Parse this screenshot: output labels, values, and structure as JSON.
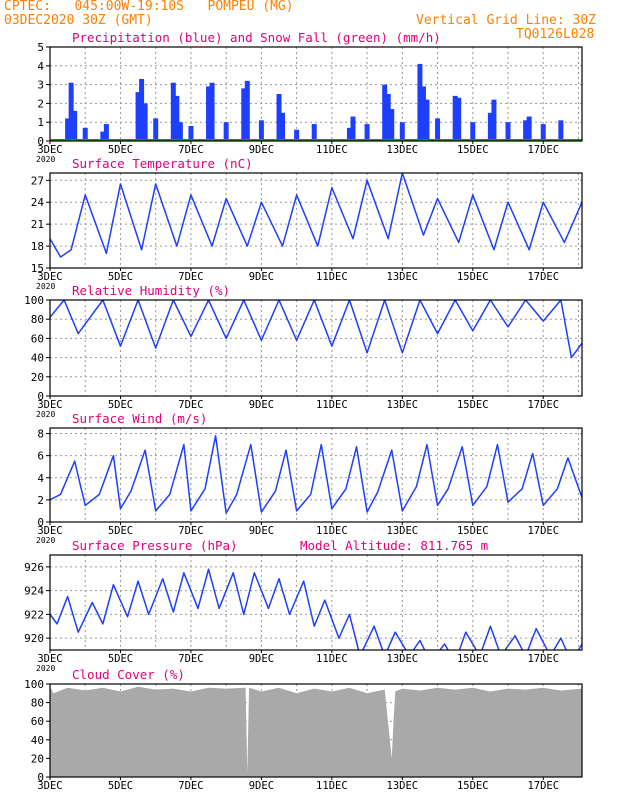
{
  "header": {
    "line1": "CPTEC:   045:00W-19:10S   POMPEU (MG)",
    "line2": "03DEC2020 30Z (GMT)",
    "grid_note": "Vertical Grid Line: 30Z",
    "code": "TQ0126L028"
  },
  "colors": {
    "header": "#ff7f00",
    "title": "#e0007a",
    "line": "#1f3fff",
    "snow": "#00a000",
    "cloud": "#a9a9a9",
    "grid": "#9a9a9a"
  },
  "x_axis": {
    "tick_labels": [
      "3DEC",
      "5DEC",
      "7DEC",
      "9DEC",
      "11DEC",
      "13DEC",
      "15DEC",
      "17DEC"
    ],
    "start_day": 3,
    "end_day": 18.1,
    "year_stub": "2020"
  },
  "chart_data": [
    {
      "type": "bar",
      "title": "Precipitation (blue) and Snow Fall (green) (mm/h)",
      "ylabel": "mm/h",
      "ylim": [
        0,
        5
      ],
      "yticks": [
        0,
        1,
        2,
        3,
        4,
        5
      ],
      "series": [
        {
          "name": "Precipitation",
          "color": "#1f3fff",
          "x": [
            3.5,
            3.6,
            3.7,
            4.0,
            4.5,
            4.6,
            5.5,
            5.6,
            5.7,
            6.0,
            6.5,
            6.6,
            6.7,
            7.0,
            7.5,
            7.6,
            8.0,
            8.5,
            8.6,
            9.0,
            9.5,
            9.6,
            10.0,
            10.5,
            11.5,
            11.6,
            12.0,
            12.5,
            12.6,
            12.7,
            13.0,
            13.5,
            13.6,
            13.7,
            14.0,
            14.5,
            14.6,
            15.0,
            15.5,
            15.6,
            16.0,
            16.5,
            16.6,
            17.0,
            17.5
          ],
          "values": [
            1.2,
            3.1,
            1.6,
            0.7,
            0.5,
            0.9,
            2.6,
            3.3,
            2.0,
            1.2,
            3.1,
            2.4,
            1.0,
            0.8,
            2.9,
            3.1,
            1.0,
            2.8,
            3.2,
            1.1,
            2.5,
            1.5,
            0.6,
            0.9,
            0.7,
            1.3,
            0.9,
            3.0,
            2.5,
            1.7,
            1.0,
            4.1,
            2.9,
            2.2,
            1.2,
            2.4,
            2.3,
            1.0,
            1.5,
            2.2,
            1.0,
            1.1,
            1.3,
            0.9,
            1.1
          ]
        },
        {
          "name": "Snow Fall",
          "color": "#00a000",
          "values": [
            0,
            0
          ]
        }
      ]
    },
    {
      "type": "line",
      "title": "Surface Temperature (nC)",
      "ylim": [
        15,
        28
      ],
      "yticks": [
        15,
        18,
        21,
        24,
        27
      ],
      "series": [
        {
          "name": "Temperature",
          "x": [
            3.0,
            3.3,
            3.6,
            4.0,
            4.6,
            5.0,
            5.6,
            6.0,
            6.6,
            7.0,
            7.6,
            8.0,
            8.6,
            9.0,
            9.6,
            10.0,
            10.6,
            11.0,
            11.6,
            12.0,
            12.6,
            13.0,
            13.6,
            14.0,
            14.6,
            15.0,
            15.6,
            16.0,
            16.6,
            17.0,
            17.6,
            18.1
          ],
          "values": [
            19.0,
            16.5,
            17.5,
            25.0,
            17.0,
            26.5,
            17.5,
            26.5,
            18.0,
            25.0,
            18.0,
            24.5,
            18.0,
            24.0,
            18.0,
            25.0,
            18.0,
            26.0,
            19.0,
            27.0,
            19.0,
            28.0,
            19.5,
            24.5,
            18.5,
            25.0,
            17.5,
            24.0,
            17.5,
            24.0,
            18.5,
            24.0
          ]
        }
      ]
    },
    {
      "type": "line",
      "title": "Relative Humidity (%)",
      "ylim": [
        0,
        100
      ],
      "yticks": [
        0,
        20,
        40,
        60,
        80,
        100
      ],
      "series": [
        {
          "name": "Relative Humidity",
          "x": [
            3.0,
            3.4,
            3.8,
            4.5,
            5.0,
            5.5,
            6.0,
            6.5,
            7.0,
            7.5,
            8.0,
            8.5,
            9.0,
            9.5,
            10.0,
            10.5,
            11.0,
            11.5,
            12.0,
            12.5,
            13.0,
            13.5,
            14.0,
            14.5,
            15.0,
            15.5,
            16.0,
            16.5,
            17.0,
            17.5,
            17.8,
            18.1
          ],
          "values": [
            82,
            100,
            65,
            100,
            52,
            100,
            50,
            100,
            62,
            100,
            60,
            100,
            58,
            100,
            58,
            100,
            52,
            100,
            45,
            100,
            45,
            100,
            65,
            100,
            68,
            100,
            72,
            100,
            78,
            100,
            40,
            55
          ]
        }
      ]
    },
    {
      "type": "line",
      "title": "Surface Wind (m/s)",
      "ylim": [
        0,
        8.5
      ],
      "yticks": [
        0,
        2,
        4,
        6,
        8
      ],
      "series": [
        {
          "name": "Wind Speed",
          "x": [
            3.0,
            3.3,
            3.7,
            4.0,
            4.4,
            4.8,
            5.0,
            5.3,
            5.7,
            6.0,
            6.4,
            6.8,
            7.0,
            7.4,
            7.7,
            8.0,
            8.3,
            8.7,
            9.0,
            9.4,
            9.7,
            10.0,
            10.4,
            10.7,
            11.0,
            11.4,
            11.7,
            12.0,
            12.3,
            12.7,
            13.0,
            13.4,
            13.7,
            14.0,
            14.3,
            14.7,
            15.0,
            15.4,
            15.7,
            16.0,
            16.4,
            16.7,
            17.0,
            17.4,
            17.7,
            18.1
          ],
          "values": [
            2.0,
            2.5,
            5.5,
            1.5,
            2.5,
            6.0,
            1.2,
            2.8,
            6.5,
            1.0,
            2.5,
            7.0,
            1.0,
            3.0,
            7.8,
            0.8,
            2.5,
            7.0,
            0.9,
            2.8,
            6.5,
            1.0,
            2.5,
            7.0,
            1.2,
            3.0,
            6.8,
            0.9,
            2.7,
            6.5,
            1.0,
            3.2,
            7.0,
            1.5,
            3.0,
            6.8,
            1.5,
            3.2,
            7.0,
            1.8,
            3.0,
            6.2,
            1.5,
            3.0,
            5.8,
            2.2
          ]
        }
      ]
    },
    {
      "type": "line",
      "title": "Surface Pressure (hPa)",
      "annotation": "Model Altitude: 811.765 m",
      "ylim": [
        919,
        927
      ],
      "yticks": [
        920,
        922,
        924,
        926
      ],
      "series": [
        {
          "name": "Surface Pressure",
          "x": [
            3.0,
            3.2,
            3.5,
            3.8,
            4.2,
            4.5,
            4.8,
            5.2,
            5.5,
            5.8,
            6.2,
            6.5,
            6.8,
            7.2,
            7.5,
            7.8,
            8.2,
            8.5,
            8.8,
            9.2,
            9.5,
            9.8,
            10.2,
            10.5,
            10.8,
            11.2,
            11.5,
            11.8,
            12.2,
            12.5,
            12.8,
            13.2,
            13.5,
            13.8,
            14.2,
            14.5,
            14.8,
            15.2,
            15.5,
            15.8,
            16.2,
            16.5,
            16.8,
            17.2,
            17.5,
            17.8,
            18.1
          ],
          "values": [
            922.0,
            921.2,
            923.5,
            920.5,
            923.0,
            921.2,
            924.5,
            921.8,
            924.8,
            922.0,
            925.0,
            922.2,
            925.5,
            922.5,
            925.8,
            922.5,
            925.5,
            922.0,
            925.5,
            922.5,
            925.0,
            922.0,
            924.8,
            921.0,
            923.2,
            920.0,
            922.0,
            918.5,
            921.0,
            918.5,
            920.5,
            918.5,
            919.8,
            918.0,
            919.5,
            918.0,
            920.5,
            918.5,
            921.0,
            918.5,
            920.2,
            918.5,
            920.8,
            918.5,
            920.0,
            918.0,
            919.5
          ]
        }
      ]
    },
    {
      "type": "area",
      "title": "Cloud Cover (%)",
      "ylim": [
        0,
        100
      ],
      "yticks": [
        0,
        20,
        40,
        60,
        80,
        100
      ],
      "series": [
        {
          "name": "Cloud Cover",
          "color": "#a9a9a9",
          "x": [
            3.0,
            3.1,
            3.5,
            4.0,
            4.5,
            5.0,
            5.5,
            6.0,
            6.5,
            7.0,
            7.5,
            8.0,
            8.55,
            8.6,
            8.65,
            9.0,
            9.5,
            10.0,
            10.5,
            11.0,
            11.5,
            12.0,
            12.5,
            12.7,
            12.75,
            12.8,
            13.0,
            13.5,
            14.0,
            14.5,
            15.0,
            15.5,
            16.0,
            16.5,
            17.0,
            17.5,
            18.1
          ],
          "values": [
            97,
            90,
            96,
            93,
            96,
            92,
            97,
            94,
            95,
            92,
            96,
            95,
            96,
            5,
            96,
            92,
            96,
            90,
            95,
            92,
            96,
            90,
            94,
            20,
            60,
            92,
            95,
            93,
            96,
            94,
            96,
            92,
            95,
            94,
            96,
            93,
            95
          ]
        }
      ]
    }
  ]
}
